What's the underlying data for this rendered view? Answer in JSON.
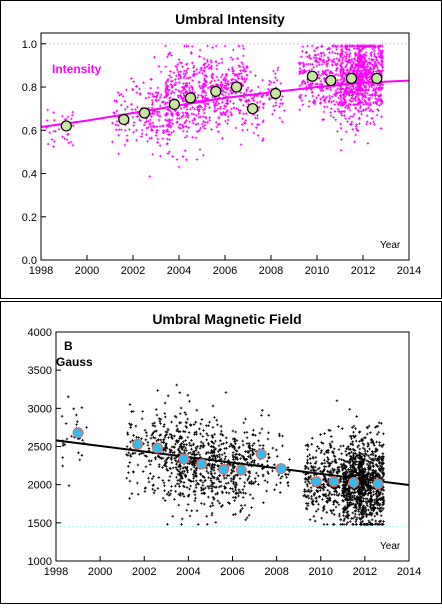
{
  "chart_data": [
    {
      "type": "scatter",
      "title": "Umbral Intensity",
      "series_label": "Intensity",
      "xlabel": "Year",
      "ylabel": "",
      "xlim": [
        1998,
        2014
      ],
      "ylim": [
        0.0,
        1.05
      ],
      "x_ticks": [
        1998,
        2000,
        2002,
        2004,
        2006,
        2008,
        2010,
        2012,
        2014
      ],
      "y_ticks": [
        0.0,
        0.2,
        0.4,
        0.6,
        0.8,
        1.0
      ],
      "y_tick_labels": [
        "0.0",
        "0.2",
        "0.4",
        "0.6",
        "0.8",
        "1.0"
      ],
      "colors": {
        "points": "#ff00ff",
        "fit": "#ff00ff",
        "averages_fill": "#c8e6a0",
        "reference_line": "#ffb6ff"
      },
      "reference_line": 1.0,
      "fit_curve": {
        "x": [
          1998,
          2000,
          2002,
          2004,
          2006,
          2008,
          2010,
          2012,
          2014
        ],
        "y": [
          0.615,
          0.645,
          0.68,
          0.715,
          0.75,
          0.775,
          0.8,
          0.82,
          0.83
        ]
      },
      "averages": {
        "x": [
          1999.1,
          2001.6,
          2002.5,
          2003.8,
          2004.5,
          2005.6,
          2006.5,
          2007.2,
          2008.2,
          2009.8,
          2010.6,
          2011.5,
          2012.6
        ],
        "y": [
          0.62,
          0.65,
          0.68,
          0.72,
          0.75,
          0.78,
          0.8,
          0.7,
          0.77,
          0.85,
          0.83,
          0.84,
          0.84
        ]
      },
      "clusters": [
        {
          "x": 1998.4,
          "w": 0.3,
          "mean": 0.62,
          "sd": 0.06,
          "n": 12
        },
        {
          "x": 1999.1,
          "w": 0.4,
          "mean": 0.62,
          "sd": 0.05,
          "n": 18
        },
        {
          "x": 2001.5,
          "w": 0.5,
          "mean": 0.66,
          "sd": 0.07,
          "n": 40
        },
        {
          "x": 2002.4,
          "w": 0.6,
          "mean": 0.67,
          "sd": 0.08,
          "n": 60
        },
        {
          "x": 2003.2,
          "w": 0.6,
          "mean": 0.7,
          "sd": 0.09,
          "n": 110
        },
        {
          "x": 2003.9,
          "w": 0.6,
          "mean": 0.72,
          "sd": 0.1,
          "n": 180
        },
        {
          "x": 2004.7,
          "w": 0.6,
          "mean": 0.75,
          "sd": 0.1,
          "n": 160
        },
        {
          "x": 2005.6,
          "w": 0.7,
          "mean": 0.78,
          "sd": 0.09,
          "n": 170
        },
        {
          "x": 2006.5,
          "w": 0.6,
          "mean": 0.79,
          "sd": 0.09,
          "n": 130
        },
        {
          "x": 2007.3,
          "w": 0.5,
          "mean": 0.72,
          "sd": 0.08,
          "n": 60
        },
        {
          "x": 2008.2,
          "w": 0.5,
          "mean": 0.77,
          "sd": 0.05,
          "n": 40
        },
        {
          "x": 2009.7,
          "w": 0.6,
          "mean": 0.84,
          "sd": 0.08,
          "n": 120
        },
        {
          "x": 2010.6,
          "w": 0.6,
          "mean": 0.83,
          "sd": 0.09,
          "n": 180
        },
        {
          "x": 2011.5,
          "w": 0.6,
          "mean": 0.84,
          "sd": 0.1,
          "n": 420
        },
        {
          "x": 2012.3,
          "w": 0.7,
          "mean": 0.84,
          "sd": 0.1,
          "n": 480
        }
      ]
    },
    {
      "type": "scatter",
      "title": "Umbral Magnetic Field",
      "panel_label": "B",
      "series_label": "Gauss",
      "xlabel": "Year",
      "ylabel": "",
      "xlim": [
        1998,
        2014
      ],
      "ylim": [
        1000,
        4000
      ],
      "x_ticks": [
        1998,
        2000,
        2002,
        2004,
        2006,
        2008,
        2010,
        2012,
        2014
      ],
      "y_ticks": [
        1000,
        1500,
        2000,
        2500,
        3000,
        3500,
        4000
      ],
      "y_tick_labels": [
        "1000",
        "1500",
        "2000",
        "2500",
        "3000",
        "3500",
        "4000"
      ],
      "colors": {
        "points": "#000000",
        "fit": "#000000",
        "averages_fill": "#33bbee",
        "averages_edge": "#ee6655",
        "reference_line": "#aaffff"
      },
      "reference_line": 1450,
      "fit_line": {
        "x": [
          1998,
          2014
        ],
        "y": [
          2580,
          1995
        ]
      },
      "averages": {
        "x": [
          1999.0,
          2001.7,
          2002.6,
          2003.8,
          2004.6,
          2005.6,
          2006.4,
          2007.3,
          2008.2,
          2009.8,
          2010.6,
          2011.5,
          2012.6
        ],
        "y": [
          2680,
          2530,
          2480,
          2340,
          2270,
          2200,
          2190,
          2400,
          2210,
          2040,
          2040,
          2030,
          2010
        ]
      },
      "clusters": [
        {
          "x": 1998.5,
          "w": 0.3,
          "mean": 2650,
          "sd": 200,
          "n": 12
        },
        {
          "x": 1999.1,
          "w": 0.4,
          "mean": 2680,
          "sd": 180,
          "n": 16
        },
        {
          "x": 2001.6,
          "w": 0.5,
          "mean": 2500,
          "sd": 260,
          "n": 50
        },
        {
          "x": 2002.5,
          "w": 0.6,
          "mean": 2480,
          "sd": 300,
          "n": 80
        },
        {
          "x": 2003.3,
          "w": 0.6,
          "mean": 2400,
          "sd": 320,
          "n": 120
        },
        {
          "x": 2003.9,
          "w": 0.6,
          "mean": 2330,
          "sd": 320,
          "n": 170
        },
        {
          "x": 2004.7,
          "w": 0.6,
          "mean": 2270,
          "sd": 290,
          "n": 160
        },
        {
          "x": 2005.6,
          "w": 0.7,
          "mean": 2210,
          "sd": 280,
          "n": 170
        },
        {
          "x": 2006.5,
          "w": 0.6,
          "mean": 2190,
          "sd": 270,
          "n": 130
        },
        {
          "x": 2007.3,
          "w": 0.5,
          "mean": 2380,
          "sd": 250,
          "n": 60
        },
        {
          "x": 2008.2,
          "w": 0.5,
          "mean": 2200,
          "sd": 200,
          "n": 30
        },
        {
          "x": 2009.7,
          "w": 0.6,
          "mean": 2050,
          "sd": 270,
          "n": 150
        },
        {
          "x": 2010.6,
          "w": 0.6,
          "mean": 2040,
          "sd": 280,
          "n": 200
        },
        {
          "x": 2011.5,
          "w": 0.6,
          "mean": 2030,
          "sd": 290,
          "n": 520
        },
        {
          "x": 2012.3,
          "w": 0.7,
          "mean": 2010,
          "sd": 290,
          "n": 560
        }
      ]
    }
  ]
}
